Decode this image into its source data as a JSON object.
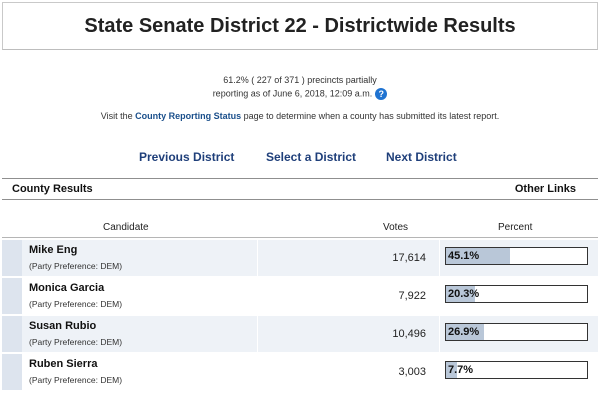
{
  "header": {
    "title": "State Senate District 22 - Districtwide Results"
  },
  "status": {
    "line1": "61.2% ( 227 of 371 ) precincts partially",
    "line2": "reporting as of June 6, 2018, 12:09 a.m.",
    "help_icon": "question-icon"
  },
  "visit": {
    "prefix": "Visit the ",
    "link": "County Reporting Status",
    "suffix": " page to determine when a county has submitted its latest report."
  },
  "nav": {
    "previous": "Previous District",
    "select": "Select a District",
    "next": "Next District"
  },
  "results_bar": {
    "county_results": "County Results",
    "other_links": "Other Links"
  },
  "table": {
    "headers": {
      "candidate": "Candidate",
      "votes": "Votes",
      "percent": "Percent"
    },
    "rows": [
      {
        "name": "Mike Eng",
        "party": "(Party Preference: DEM)",
        "votes": "17,614",
        "percent": "45.1%",
        "fraction": 0.451
      },
      {
        "name": "Monica Garcia",
        "party": "(Party Preference: DEM)",
        "votes": "7,922",
        "percent": "20.3%",
        "fraction": 0.203
      },
      {
        "name": "Susan Rubio",
        "party": "(Party Preference: DEM)",
        "votes": "10,496",
        "percent": "26.9%",
        "fraction": 0.269
      },
      {
        "name": "Ruben Sierra",
        "party": "(Party Preference: DEM)",
        "votes": "3,003",
        "percent": "7.7%",
        "fraction": 0.077
      }
    ]
  },
  "colors": {
    "link": "#1f3f7a",
    "bar_fill": "#b9c7d8",
    "alt_row": "#eef2f7",
    "help": "#1f73d1"
  }
}
